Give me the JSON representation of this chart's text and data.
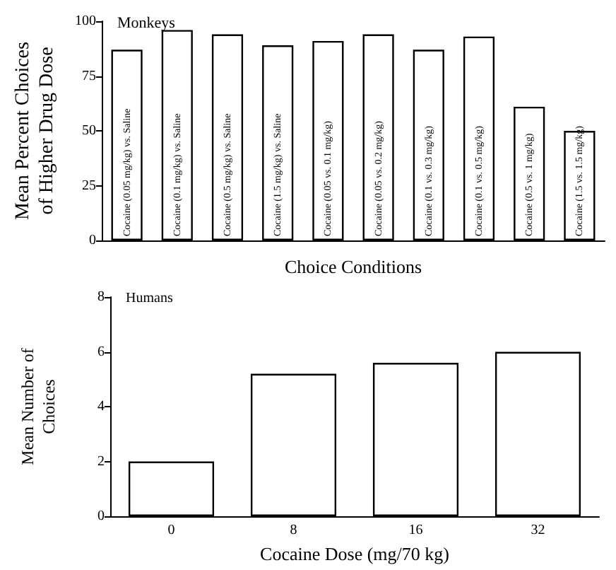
{
  "chart_data": [
    {
      "type": "bar",
      "title": "Monkeys",
      "xlabel": "Choice Conditions",
      "ylabel": "Mean Percent Choices\nof Higher Drug Dose",
      "categories": [
        "Cocaine (0.05 mg/kg) vs. Saline",
        "Cocaine (0.1 mg/kg) vs. Saline",
        "Cocaine (0.5 mg/kg) vs. Saline",
        "Cocaine (1.5 mg/kg) vs. Saline",
        "Cocaine (0.05 vs. 0.1 mg/kg)",
        "Cocaine (0.05 vs. 0.2 mg/kg)",
        "Cocaine (0.1 vs. 0.3 mg/kg)",
        "Cocaine (0.1 vs. 0.5 mg/kg)",
        "Cocaine (0.5 vs. 1 mg/kg)",
        "Cocaine (1.5 vs. 1.5 mg/kg)"
      ],
      "values": [
        87,
        96,
        94,
        89,
        91,
        94,
        87,
        93,
        61,
        50
      ],
      "color": "#ffffff",
      "ylim": [
        0,
        100
      ],
      "yticks": [
        0,
        25,
        50,
        75,
        100
      ]
    },
    {
      "type": "bar",
      "title": "Humans",
      "xlabel": "Cocaine Dose (mg/70 kg)",
      "ylabel": "Mean Number of\nChoices",
      "categories": [
        "0",
        "8",
        "16",
        "32"
      ],
      "values": [
        2,
        5.2,
        5.6,
        6.0
      ],
      "color": "#ffffff",
      "ylim": [
        0,
        8
      ],
      "yticks": [
        0,
        2,
        4,
        6,
        8
      ]
    }
  ]
}
